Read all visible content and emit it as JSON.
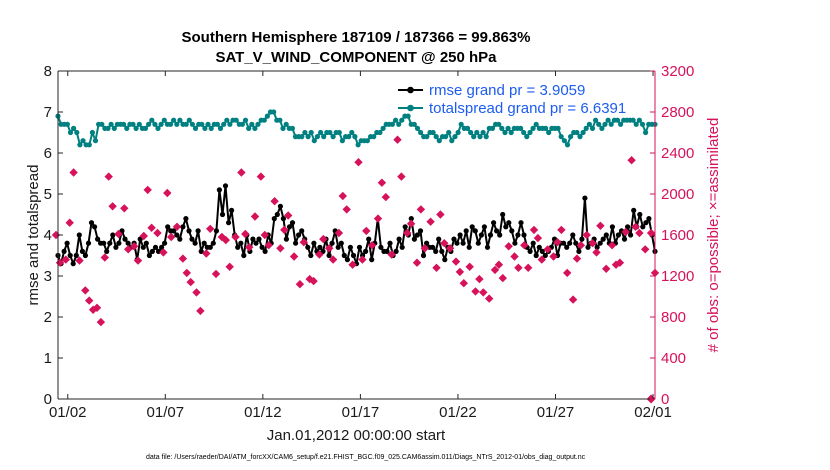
{
  "chart_data": {
    "type": "line",
    "title": "Southern Hemisphere 187109 / 187366 = 99.863%",
    "subtitle": "SAT_V_WIND_COMPONENT @ 250 hPa",
    "xlabel": "Jan.01,2012 00:00:00 start",
    "ylabel_left": "rmse and totalspread",
    "ylabel_right": "# of obs: o=possible; ×=assimilated",
    "footnote": "data file: /Users/raeder/DAI/ATM_forcXX/CAM6_setup/f.e21.FHIST_BGC.f09_025.CAM6assim.011/Diags_NTrS_2012-01/obs_diag_output.nc",
    "xlim": [
      0.5,
      31.1
    ],
    "ylim_left": [
      0,
      8
    ],
    "ylim_right": [
      0,
      3200
    ],
    "x_ticks": [
      1,
      6,
      11,
      16,
      21,
      26,
      31
    ],
    "x_tick_labels": [
      "01/02",
      "01/07",
      "01/12",
      "01/17",
      "01/22",
      "01/27",
      "02/01"
    ],
    "y_ticks_left": [
      "0",
      "1",
      "2",
      "3",
      "4",
      "5",
      "6",
      "7",
      "8"
    ],
    "y_ticks_right": [
      "0",
      "400",
      "800",
      "1200",
      "1600",
      "2000",
      "2400",
      "2800",
      "3200"
    ],
    "colors": {
      "rmse": "#000000",
      "spread": "#008080",
      "obs": "#d6125b",
      "legend_text": "#1c5cf0",
      "right_axis": "#d6125b"
    },
    "legend": {
      "position": "top-right",
      "entries": [
        "rmse grand pr = 3.9059",
        "totalspread grand pr = 6.6391"
      ]
    },
    "rmse": [
      3.5,
      3.3,
      3.6,
      3.8,
      3.5,
      3.3,
      3.5,
      4.0,
      3.6,
      3.5,
      3.8,
      4.3,
      4.2,
      3.9,
      3.8,
      3.8,
      3.6,
      3.8,
      4.0,
      3.7,
      3.8,
      4.1,
      3.9,
      3.8,
      3.7,
      3.8,
      3.4,
      3.9,
      3.7,
      3.8,
      3.5,
      3.6,
      3.7,
      3.6,
      3.7,
      3.8,
      4.2,
      4.1,
      4.1,
      4.0,
      3.9,
      4.2,
      4.4,
      4.1,
      3.9,
      3.8,
      4.1,
      3.6,
      3.8,
      3.7,
      3.7,
      3.8,
      4.1,
      5.1,
      4.5,
      5.2,
      4.3,
      4.6,
      4.0,
      3.7,
      3.8,
      3.5,
      4.0,
      3.6,
      3.9,
      3.8,
      3.9,
      3.7,
      3.6,
      4.0,
      3.8,
      4.4,
      4.5,
      4.7,
      4.4,
      3.9,
      4.2,
      4.3,
      3.8,
      4.0,
      4.1,
      3.9,
      3.7,
      3.5,
      3.8,
      3.6,
      3.7,
      3.6,
      3.9,
      3.5,
      3.8,
      4.1,
      3.7,
      3.8,
      3.5,
      3.4,
      3.7,
      3.5,
      3.3,
      3.7,
      3.5,
      3.6,
      3.9,
      3.4,
      3.8,
      4.4,
      3.7,
      3.6,
      3.6,
      3.8,
      3.5,
      3.6,
      3.9,
      3.7,
      4.2,
      4.0,
      4.4,
      3.9,
      4.0,
      4.1,
      3.5,
      3.8,
      3.7,
      3.7,
      3.6,
      3.9,
      3.6,
      3.4,
      3.7,
      3.6,
      3.9,
      3.8,
      4.0,
      3.8,
      4.1,
      3.7,
      4.2,
      4.1,
      3.8,
      4.0,
      4.2,
      3.7,
      4.0,
      4.3,
      4.1,
      4.0,
      4.5,
      4.2,
      4.3,
      4.1,
      3.8,
      4.0,
      4.3,
      4.0,
      3.7,
      3.6,
      3.8,
      3.5,
      3.7,
      3.6,
      3.5,
      3.6,
      3.7,
      3.9,
      3.5,
      3.8,
      3.8,
      3.7,
      3.8,
      4.0,
      3.8,
      3.6,
      3.9,
      4.9,
      3.7,
      3.8,
      3.9,
      3.7,
      3.8,
      3.9,
      4.0,
      3.8,
      4.2,
      3.8,
      4.0,
      4.1,
      3.9,
      4.2,
      4.0,
      4.6,
      4.2,
      4.5,
      4.2,
      4.3,
      4.4,
      4.0,
      3.6
    ],
    "totalspread": [
      6.9,
      6.7,
      6.7,
      6.7,
      6.5,
      6.6,
      6.5,
      6.2,
      6.3,
      6.2,
      6.2,
      6.5,
      6.3,
      6.7,
      6.7,
      6.6,
      6.6,
      6.7,
      6.6,
      6.7,
      6.7,
      6.7,
      6.6,
      6.7,
      6.7,
      6.6,
      6.7,
      6.6,
      6.6,
      6.7,
      6.8,
      6.7,
      6.6,
      6.7,
      6.8,
      6.7,
      6.7,
      6.8,
      6.7,
      6.8,
      6.7,
      6.7,
      6.8,
      6.7,
      6.6,
      6.7,
      6.7,
      6.6,
      6.7,
      6.6,
      6.7,
      6.7,
      6.6,
      6.7,
      6.8,
      6.7,
      6.8,
      6.8,
      6.7,
      6.7,
      6.8,
      6.6,
      6.7,
      6.6,
      6.7,
      6.8,
      6.8,
      6.9,
      7.0,
      7.0,
      6.8,
      6.8,
      6.6,
      6.7,
      6.6,
      6.6,
      6.4,
      6.4,
      6.4,
      6.5,
      6.4,
      6.5,
      6.3,
      6.4,
      6.5,
      6.4,
      6.5,
      6.5,
      6.4,
      6.5,
      6.5,
      6.3,
      6.4,
      6.4,
      6.5,
      6.4,
      6.2,
      6.3,
      6.3,
      6.3,
      6.4,
      6.4,
      6.5,
      6.5,
      6.6,
      6.7,
      6.7,
      6.7,
      6.8,
      6.7,
      6.8,
      6.9,
      6.9,
      6.7,
      6.7,
      6.6,
      6.5,
      6.4,
      6.4,
      6.5,
      6.5,
      6.4,
      6.3,
      6.4,
      6.4,
      6.5,
      6.3,
      6.4,
      6.5,
      6.7,
      6.6,
      6.6,
      6.5,
      6.4,
      6.5,
      6.4,
      6.5,
      6.4,
      6.6,
      6.6,
      6.7,
      6.7,
      6.6,
      6.5,
      6.6,
      6.5,
      6.6,
      6.6,
      6.6,
      6.5,
      6.4,
      6.5,
      6.6,
      6.7,
      6.6,
      6.6,
      6.6,
      6.5,
      6.6,
      6.6,
      6.6,
      6.4,
      6.3,
      6.2,
      6.4,
      6.5,
      6.5,
      6.4,
      6.5,
      6.6,
      6.7,
      6.6,
      6.8,
      6.7,
      6.6,
      6.7,
      6.8,
      6.7,
      6.8,
      6.8,
      6.7,
      6.8,
      6.8,
      6.8,
      6.8,
      6.7,
      6.8,
      6.7,
      6.5,
      6.7,
      6.7,
      6.7
    ],
    "obs_assimilated": [
      [
        0.4,
        1600
      ],
      [
        0.6,
        1330
      ],
      [
        0.9,
        1360
      ],
      [
        1.1,
        1720
      ],
      [
        1.3,
        2210
      ],
      [
        1.6,
        1350
      ],
      [
        1.9,
        1060
      ],
      [
        2.1,
        960
      ],
      [
        2.3,
        870
      ],
      [
        2.5,
        890
      ],
      [
        2.7,
        750
      ],
      [
        2.9,
        1380
      ],
      [
        3.1,
        2170
      ],
      [
        3.3,
        1880
      ],
      [
        3.6,
        1610
      ],
      [
        3.9,
        1860
      ],
      [
        4.1,
        1460
      ],
      [
        4.4,
        1490
      ],
      [
        4.6,
        1350
      ],
      [
        4.9,
        1590
      ],
      [
        5.1,
        2040
      ],
      [
        5.3,
        1670
      ],
      [
        5.6,
        1620
      ],
      [
        5.9,
        1430
      ],
      [
        6.1,
        2010
      ],
      [
        6.3,
        1580
      ],
      [
        6.6,
        1680
      ],
      [
        6.9,
        1370
      ],
      [
        7.1,
        1230
      ],
      [
        7.3,
        1140
      ],
      [
        7.6,
        1040
      ],
      [
        7.8,
        860
      ],
      [
        8.1,
        1420
      ],
      [
        8.3,
        1660
      ],
      [
        8.6,
        1220
      ],
      [
        8.9,
        1580
      ],
      [
        9.1,
        1550
      ],
      [
        9.3,
        1290
      ],
      [
        9.6,
        1580
      ],
      [
        9.9,
        2210
      ],
      [
        10.1,
        1610
      ],
      [
        10.3,
        1480
      ],
      [
        10.6,
        1780
      ],
      [
        10.9,
        2170
      ],
      [
        11.1,
        1600
      ],
      [
        11.3,
        1500
      ],
      [
        11.6,
        1930
      ],
      [
        11.9,
        1470
      ],
      [
        12.1,
        1650
      ],
      [
        12.3,
        1790
      ],
      [
        12.6,
        1390
      ],
      [
        12.9,
        1120
      ],
      [
        13.1,
        1530
      ],
      [
        13.4,
        1170
      ],
      [
        13.6,
        1150
      ],
      [
        13.9,
        1410
      ],
      [
        14.1,
        1560
      ],
      [
        14.4,
        1470
      ],
      [
        14.6,
        1360
      ],
      [
        14.9,
        1620
      ],
      [
        15.1,
        1980
      ],
      [
        15.3,
        1850
      ],
      [
        15.6,
        1310
      ],
      [
        15.9,
        2310
      ],
      [
        16.1,
        1360
      ],
      [
        16.3,
        1640
      ],
      [
        16.6,
        1500
      ],
      [
        16.9,
        1760
      ],
      [
        17.1,
        2110
      ],
      [
        17.3,
        1970
      ],
      [
        17.6,
        1410
      ],
      [
        17.9,
        2530
      ],
      [
        18.1,
        2170
      ],
      [
        18.4,
        1620
      ],
      [
        18.6,
        1710
      ],
      [
        18.9,
        1330
      ],
      [
        19.1,
        1850
      ],
      [
        19.3,
        1470
      ],
      [
        19.6,
        1730
      ],
      [
        19.9,
        1280
      ],
      [
        20.1,
        1800
      ],
      [
        20.3,
        1520
      ],
      [
        20.6,
        1470
      ],
      [
        20.9,
        1340
      ],
      [
        21.1,
        1240
      ],
      [
        21.3,
        1130
      ],
      [
        21.6,
        1290
      ],
      [
        21.9,
        1050
      ],
      [
        22.1,
        1170
      ],
      [
        22.3,
        1040
      ],
      [
        22.6,
        980
      ],
      [
        22.9,
        1260
      ],
      [
        23.1,
        1310
      ],
      [
        23.3,
        1180
      ],
      [
        23.6,
        1490
      ],
      [
        23.9,
        1390
      ],
      [
        24.1,
        1280
      ],
      [
        24.4,
        1500
      ],
      [
        24.6,
        1280
      ],
      [
        24.9,
        1650
      ],
      [
        25.1,
        1570
      ],
      [
        25.3,
        1360
      ],
      [
        25.6,
        1460
      ],
      [
        25.9,
        1390
      ],
      [
        26.1,
        1530
      ],
      [
        26.3,
        1650
      ],
      [
        26.6,
        1230
      ],
      [
        26.9,
        970
      ],
      [
        27.1,
        1370
      ],
      [
        27.3,
        1500
      ],
      [
        27.6,
        1600
      ],
      [
        27.9,
        1520
      ],
      [
        28.1,
        1430
      ],
      [
        28.3,
        1690
      ],
      [
        28.6,
        1270
      ],
      [
        28.9,
        1500
      ],
      [
        29.1,
        1310
      ],
      [
        29.3,
        1330
      ],
      [
        29.6,
        1630
      ],
      [
        29.9,
        2330
      ],
      [
        30.1,
        1680
      ],
      [
        30.3,
        1620
      ],
      [
        30.6,
        1460
      ],
      [
        30.9,
        1620
      ],
      [
        31.1,
        1230
      ]
    ],
    "obs_possible": [
      [
        30.9,
        0
      ]
    ]
  }
}
